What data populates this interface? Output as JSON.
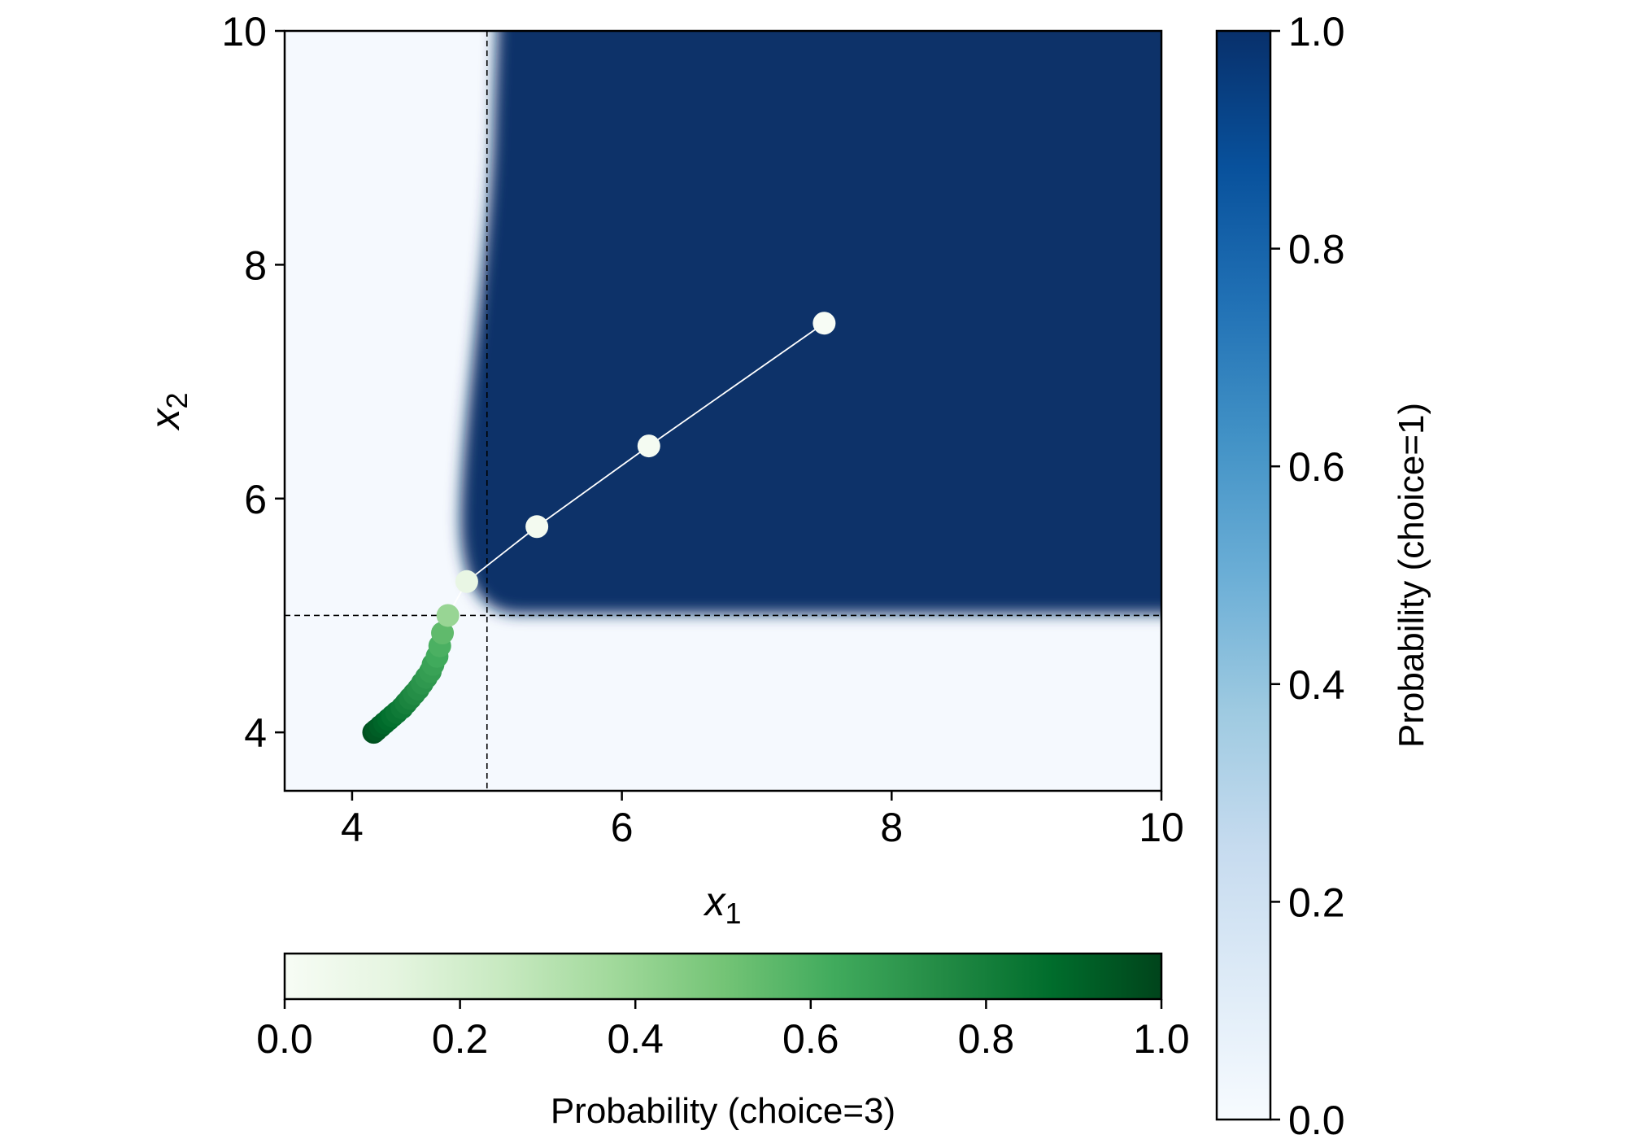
{
  "chart_data": {
    "type": "heatmap",
    "xlabel": {
      "base": "x",
      "sub": "1"
    },
    "ylabel": {
      "base": "x",
      "sub": "2"
    },
    "xlim": [
      3.5,
      10
    ],
    "ylim": [
      3.5,
      10
    ],
    "xticks": [
      4,
      6,
      8,
      10
    ],
    "yticks": [
      4,
      6,
      8,
      10
    ],
    "xtick_labels": [
      "4",
      "6",
      "8",
      "10"
    ],
    "ytick_labels": [
      "4",
      "6",
      "8",
      "10"
    ],
    "heatmap": {
      "description_value": "probability of choice=1 over (x1, x2)",
      "threshold_x1": 5.0,
      "threshold_x2": 5.0,
      "high_value_region": "x1 > 5 and x2 > 5",
      "colormap": "Blues"
    },
    "reference_lines": [
      {
        "orientation": "vertical",
        "value": 5.0,
        "style": "dashed"
      },
      {
        "orientation": "horizontal",
        "value": 5.0,
        "style": "dashed"
      }
    ],
    "trajectory": {
      "colormap": "Greens",
      "points": [
        {
          "x1": 7.5,
          "x2": 7.5,
          "p3": 0.0
        },
        {
          "x1": 6.2,
          "x2": 6.45,
          "p3": 0.02
        },
        {
          "x1": 5.37,
          "x2": 5.76,
          "p3": 0.03
        },
        {
          "x1": 4.85,
          "x2": 5.29,
          "p3": 0.1
        },
        {
          "x1": 4.71,
          "x2": 5.0,
          "p3": 0.4
        },
        {
          "x1": 4.67,
          "x2": 4.85,
          "p3": 0.55
        },
        {
          "x1": 4.65,
          "x2": 4.74,
          "p3": 0.6
        },
        {
          "x1": 4.63,
          "x2": 4.65,
          "p3": 0.63
        },
        {
          "x1": 4.6,
          "x2": 4.58,
          "p3": 0.66
        },
        {
          "x1": 4.58,
          "x2": 4.52,
          "p3": 0.68
        },
        {
          "x1": 4.55,
          "x2": 4.47,
          "p3": 0.7
        },
        {
          "x1": 4.52,
          "x2": 4.42,
          "p3": 0.72
        },
        {
          "x1": 4.49,
          "x2": 4.37,
          "p3": 0.74
        },
        {
          "x1": 4.46,
          "x2": 4.33,
          "p3": 0.76
        },
        {
          "x1": 4.43,
          "x2": 4.29,
          "p3": 0.78
        },
        {
          "x1": 4.4,
          "x2": 4.25,
          "p3": 0.8
        },
        {
          "x1": 4.37,
          "x2": 4.21,
          "p3": 0.82
        },
        {
          "x1": 4.33,
          "x2": 4.17,
          "p3": 0.84
        },
        {
          "x1": 4.3,
          "x2": 4.14,
          "p3": 0.86
        },
        {
          "x1": 4.27,
          "x2": 4.11,
          "p3": 0.88
        },
        {
          "x1": 4.24,
          "x2": 4.08,
          "p3": 0.9
        },
        {
          "x1": 4.21,
          "x2": 4.05,
          "p3": 0.92
        },
        {
          "x1": 4.18,
          "x2": 4.02,
          "p3": 0.94
        },
        {
          "x1": 4.16,
          "x2": 4.0,
          "p3": 0.96
        }
      ]
    },
    "colorbar_right": {
      "label": "Probability (choice=1)",
      "ticks": [
        0.0,
        0.2,
        0.4,
        0.6,
        0.8,
        1.0
      ],
      "tick_labels": [
        "0.0",
        "0.2",
        "0.4",
        "0.6",
        "0.8",
        "1.0"
      ],
      "colormap": "Blues"
    },
    "colorbar_bottom": {
      "label": "Probability (choice=3)",
      "ticks": [
        0.0,
        0.2,
        0.4,
        0.6,
        0.8,
        1.0
      ],
      "tick_labels": [
        "0.0",
        "0.2",
        "0.4",
        "0.6",
        "0.8",
        "1.0"
      ],
      "colormap": "Greens"
    }
  },
  "colors": {
    "blue_low": "#f5f9fe",
    "blue_high": "#08306b",
    "green_low": "#f7fcf5",
    "green_high": "#00441b",
    "trajectory_line": "#ffffff"
  }
}
